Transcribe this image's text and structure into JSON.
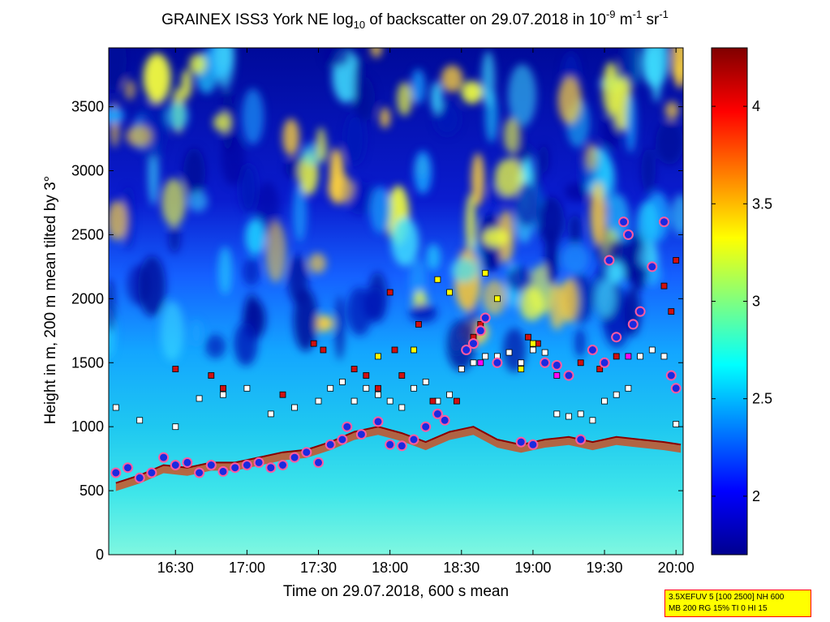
{
  "chart_data": {
    "type": "heatmap",
    "title_parts": {
      "pre": "GRAINEX ISS3 York NE log",
      "sub": "10",
      "mid": " of backscatter on 29.07.2018 in 10",
      "sup1": "-9",
      "m": " m",
      "sup2": "-1",
      "sr": " sr",
      "sup3": "-1"
    },
    "xlabel": "Time on 29.07.2018, 600 s mean",
    "ylabel": "Height in m, 200 m mean tilted by 3°",
    "x_ticks": [
      "16:30",
      "17:00",
      "17:30",
      "18:00",
      "18:30",
      "19:00",
      "19:30",
      "20:00"
    ],
    "x_tick_minutes": [
      990,
      1020,
      1050,
      1080,
      1110,
      1140,
      1170,
      1200
    ],
    "xlim_minutes": [
      962,
      1203
    ],
    "y_ticks": [
      0,
      500,
      1000,
      1500,
      2000,
      2500,
      3000,
      3500
    ],
    "ylim": [
      0,
      3960
    ],
    "colorbar": {
      "ticks": [
        "2",
        "2.5",
        "3",
        "3.5",
        "4"
      ],
      "tick_values": [
        2,
        2.5,
        3,
        3.5,
        4
      ],
      "range": [
        1.7,
        4.3
      ],
      "colormap": "jet"
    },
    "boundary_layer_top_m": [
      [
        965,
        560
      ],
      [
        975,
        620
      ],
      [
        985,
        700
      ],
      [
        995,
        680
      ],
      [
        1005,
        720
      ],
      [
        1015,
        720
      ],
      [
        1025,
        760
      ],
      [
        1035,
        800
      ],
      [
        1045,
        820
      ],
      [
        1055,
        880
      ],
      [
        1065,
        960
      ],
      [
        1075,
        1000
      ],
      [
        1085,
        950
      ],
      [
        1095,
        880
      ],
      [
        1105,
        960
      ],
      [
        1115,
        1000
      ],
      [
        1125,
        900
      ],
      [
        1135,
        860
      ],
      [
        1145,
        900
      ],
      [
        1155,
        920
      ],
      [
        1165,
        880
      ],
      [
        1175,
        920
      ],
      [
        1185,
        900
      ],
      [
        1195,
        880
      ],
      [
        1202,
        860
      ]
    ],
    "layer_top_markers_m": [
      [
        965,
        640
      ],
      [
        970,
        680
      ],
      [
        975,
        600
      ],
      [
        980,
        640
      ],
      [
        985,
        760
      ],
      [
        990,
        700
      ],
      [
        995,
        720
      ],
      [
        1000,
        640
      ],
      [
        1005,
        700
      ],
      [
        1010,
        650
      ],
      [
        1015,
        680
      ],
      [
        1020,
        700
      ],
      [
        1025,
        720
      ],
      [
        1030,
        680
      ],
      [
        1035,
        700
      ],
      [
        1040,
        760
      ],
      [
        1045,
        800
      ],
      [
        1050,
        720
      ],
      [
        1055,
        860
      ],
      [
        1060,
        900
      ],
      [
        1062,
        1000
      ],
      [
        1068,
        940
      ],
      [
        1075,
        1040
      ],
      [
        1080,
        860
      ],
      [
        1085,
        850
      ],
      [
        1090,
        900
      ],
      [
        1095,
        1000
      ],
      [
        1100,
        1100
      ],
      [
        1103,
        1050
      ],
      [
        1112,
        1600
      ],
      [
        1115,
        1650
      ],
      [
        1118,
        1750
      ],
      [
        1120,
        1850
      ],
      [
        1125,
        1500
      ],
      [
        1135,
        880
      ],
      [
        1140,
        860
      ],
      [
        1145,
        1500
      ],
      [
        1150,
        1480
      ],
      [
        1155,
        1400
      ],
      [
        1160,
        900
      ],
      [
        1165,
        1600
      ],
      [
        1170,
        1500
      ],
      [
        1172,
        2300
      ],
      [
        1175,
        1700
      ],
      [
        1178,
        2600
      ],
      [
        1180,
        2500
      ],
      [
        1182,
        1800
      ],
      [
        1185,
        1900
      ],
      [
        1190,
        2250
      ],
      [
        1195,
        2600
      ],
      [
        1198,
        1400
      ],
      [
        1200,
        1300
      ]
    ],
    "aerosol_layer_markers_m": [
      [
        965,
        1150
      ],
      [
        975,
        1050
      ],
      [
        990,
        1000
      ],
      [
        1000,
        1220
      ],
      [
        1010,
        1250
      ],
      [
        1020,
        1300
      ],
      [
        1030,
        1100
      ],
      [
        1040,
        1150
      ],
      [
        1050,
        1200
      ],
      [
        1055,
        1300
      ],
      [
        1060,
        1350
      ],
      [
        1065,
        1200
      ],
      [
        1070,
        1300
      ],
      [
        1075,
        1250
      ],
      [
        1080,
        1200
      ],
      [
        1085,
        1150
      ],
      [
        1090,
        1300
      ],
      [
        1095,
        1350
      ],
      [
        1100,
        1200
      ],
      [
        1105,
        1250
      ],
      [
        1110,
        1450
      ],
      [
        1115,
        1500
      ],
      [
        1120,
        1550
      ],
      [
        1125,
        1550
      ],
      [
        1130,
        1580
      ],
      [
        1135,
        1500
      ],
      [
        1140,
        1600
      ],
      [
        1145,
        1580
      ],
      [
        1150,
        1100
      ],
      [
        1155,
        1080
      ],
      [
        1160,
        1100
      ],
      [
        1165,
        1050
      ],
      [
        1170,
        1200
      ],
      [
        1175,
        1250
      ],
      [
        1180,
        1300
      ],
      [
        1185,
        1550
      ],
      [
        1190,
        1600
      ],
      [
        1195,
        1550
      ],
      [
        1200,
        1020
      ]
    ],
    "gradient_markers_m": [
      [
        990,
        1450
      ],
      [
        1005,
        1400
      ],
      [
        1010,
        1300
      ],
      [
        1035,
        1250
      ],
      [
        1048,
        1650
      ],
      [
        1052,
        1600
      ],
      [
        1065,
        1450
      ],
      [
        1070,
        1400
      ],
      [
        1075,
        1300
      ],
      [
        1080,
        2050
      ],
      [
        1082,
        1600
      ],
      [
        1085,
        1400
      ],
      [
        1092,
        1800
      ],
      [
        1098,
        1200
      ],
      [
        1108,
        1200
      ],
      [
        1115,
        1700
      ],
      [
        1118,
        1800
      ],
      [
        1138,
        1700
      ],
      [
        1142,
        1650
      ],
      [
        1160,
        1500
      ],
      [
        1168,
        1450
      ],
      [
        1175,
        1550
      ],
      [
        1195,
        2100
      ],
      [
        1198,
        1900
      ],
      [
        1200,
        2300
      ]
    ],
    "aux_markers_m": [
      [
        1105,
        2050
      ],
      [
        1100,
        2150
      ],
      [
        1075,
        1550
      ],
      [
        1090,
        1600
      ],
      [
        1125,
        2000
      ],
      [
        1135,
        1450
      ],
      [
        1120,
        2200
      ],
      [
        1140,
        1650
      ]
    ],
    "cloud_markers_m": [
      [
        1118,
        1500
      ],
      [
        1150,
        1400
      ],
      [
        1180,
        1550
      ]
    ]
  },
  "infobox": {
    "line1": "3.5XEFUV 5 [100 2500] NH 600",
    "line2": "MB 200 RG 15% TI 0 HI 15"
  }
}
